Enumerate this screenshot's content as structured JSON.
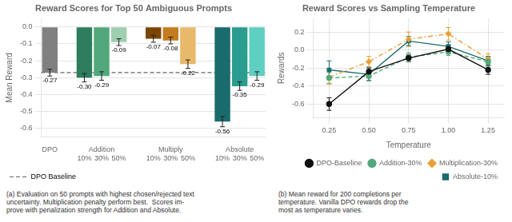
{
  "chart_data": [
    {
      "type": "bar",
      "title": "Reward Scores for Top 50 Ambiguous Prompts",
      "ylabel": "Mean Reward",
      "groups": [
        {
          "label": "DPO",
          "categories": [
            null
          ],
          "values": [
            -0.27
          ],
          "errors": [
            0.02
          ],
          "colors": [
            "#808080"
          ],
          "value_labels": [
            "-0.27"
          ]
        },
        {
          "label": "Addition",
          "categories": [
            "10%",
            "30%",
            "50%"
          ],
          "values": [
            -0.3,
            -0.29,
            -0.09
          ],
          "errors": [
            0.025,
            0.025,
            0.02
          ],
          "colors": [
            "#2e7d5e",
            "#52a87a",
            "#9ecfb0"
          ],
          "value_labels": [
            "-0.30",
            "-0.29",
            "-0.09"
          ]
        },
        {
          "label": "Multiply",
          "categories": [
            "10%",
            "30%",
            "50%"
          ],
          "values": [
            -0.07,
            -0.08,
            -0.22
          ],
          "errors": [
            0.02,
            0.02,
            0.025
          ],
          "colors": [
            "#7b4500",
            "#c47a1e",
            "#e8b96a"
          ],
          "value_labels": [
            "-0.07",
            "-0.08",
            "-0.22"
          ]
        },
        {
          "label": "Absolute",
          "categories": [
            "10%",
            "30%",
            "50%"
          ],
          "values": [
            -0.56,
            -0.35,
            -0.29
          ],
          "errors": [
            0.03,
            0.025,
            0.025
          ],
          "colors": [
            "#1a6b6b",
            "#2a9d8f",
            "#5ecfc0"
          ],
          "value_labels": [
            "-0.56",
            "-0.35",
            "-0.29"
          ]
        }
      ],
      "baseline": {
        "name": "DPO Baseline",
        "value": -0.27,
        "color": "#666666",
        "line_style": "dashed"
      },
      "ylim": [
        -0.65,
        0.05
      ],
      "yticks": [
        {
          "value": 0,
          "label": "0.0"
        },
        -0.1,
        -0.2,
        -0.3,
        -0.4,
        -0.5,
        -0.6
      ],
      "grid": "y",
      "legend": "lower left",
      "data_labels": true,
      "caption": "(a) Evaluation on 50 prompts with highest chosen/rejected text\nuncertainty. Multiplication penalty perform best.  Scores im-\nprove with penalization strength for Addition and Absolute."
    },
    {
      "type": "line",
      "title": "Reward Scores vs Sampling Temperature",
      "xlabel": "Temperature",
      "ylabel": "Rewards",
      "x": [
        0.25,
        0.5,
        0.75,
        1,
        1.25
      ],
      "series": [
        {
          "name": "DPO-Baseline",
          "color": "#111111",
          "line_style": "solid",
          "marker": "circle",
          "values": [
            -0.6,
            -0.24,
            -0.09,
            0.01,
            -0.22
          ],
          "errors": [
            0.07,
            0.05,
            0.04,
            0.04,
            0.05
          ]
        },
        {
          "name": "Addition-30%",
          "color": "#52a87a",
          "line_style": "dashed",
          "marker": "circle",
          "values": [
            -0.31,
            -0.29,
            -0.08,
            -0.02,
            -0.13
          ],
          "errors": [
            0.06,
            0.05,
            0.05,
            0.04,
            0.05
          ]
        },
        {
          "name": "Multiplication-30%",
          "color": "#e8a030",
          "line_style": "dashdot",
          "marker": "diamond",
          "values": [
            -0.3,
            -0.13,
            0.12,
            0.18,
            -0.1
          ],
          "errors": [
            0.08,
            0.06,
            0.08,
            0.07,
            0.06
          ]
        },
        {
          "name": "Absolute-10%",
          "color": "#1a6b6b",
          "line_style": "solid",
          "marker": "square",
          "values": [
            -0.22,
            -0.27,
            0.1,
            0.04,
            -0.12
          ],
          "errors": [
            0.1,
            0.07,
            0.05,
            0.05,
            0.05
          ]
        }
      ],
      "xlim": [
        0.15,
        1.35
      ],
      "xticks": [
        0.25,
        {
          "value": 0.5,
          "label": "0.50"
        },
        0.75,
        {
          "value": 1,
          "label": "1.00"
        },
        1.25
      ],
      "ylim": [
        -0.75,
        0.35
      ],
      "yticks": [
        -0.6,
        -0.4,
        -0.2,
        {
          "value": 0,
          "label": "0.0"
        },
        0.2
      ],
      "grid": true,
      "legend": "lower right",
      "caption": "(b) Mean reward for 200 completions per\ntemperature. Vanilla DPO rewards drop the\nmost as temperature varies."
    }
  ]
}
